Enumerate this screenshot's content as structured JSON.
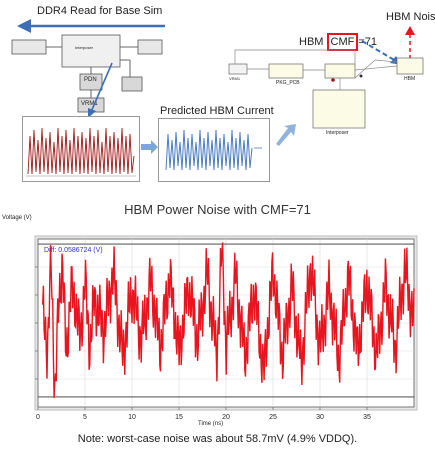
{
  "top": {
    "ddr4_label": "DDR4 Read for Base Sim",
    "hbm_noise_label": "HBM Noise",
    "hbm_cmf_prefix": "HBM ",
    "hbm_cmf_boxed": "CMF",
    "hbm_cmf_suffix": "=71",
    "predicted_label": "Predicted HBM Current",
    "blocks": {
      "interposer_left": "Interposer",
      "pdn": "PDN",
      "vrm1_left": "VRM1",
      "vrm1_right": "VRM1",
      "pkg_pcb": "PKG_PCB",
      "hbm": "HBM",
      "interposer_right": "Interposer"
    }
  },
  "plot": {
    "title": "HBM Power Noise with CMF=71",
    "ylabel": "Voltage (V)",
    "xlabel": "Time (ns)",
    "diff_label": "Diff: 0.0586724 (V)",
    "note": "Note: worst-case noise was about 58.7mV (4.9% VDDQ).",
    "x_ticks": [
      "0",
      "5",
      "10",
      "15",
      "20",
      "25",
      "30",
      "35"
    ]
  },
  "chart_data": {
    "type": "line",
    "title": "HBM Power Noise with CMF=71",
    "xlabel": "Time (ns)",
    "ylabel": "Voltage (V)",
    "xlim": [
      0,
      40
    ],
    "x_ticks": [
      0,
      5,
      10,
      15,
      20,
      25,
      30,
      35
    ],
    "diff_v": 0.0586724,
    "series": [
      {
        "color": "#e8141e",
        "x": [
          0.5,
          1.0,
          1.4,
          1.8,
          2.2,
          2.6,
          3.0,
          3.5,
          4.0,
          4.5,
          5.0,
          5.5,
          6.0,
          7.0,
          8.0,
          9.0,
          10.0,
          11.0,
          12.0,
          13.0,
          14.0,
          15.0,
          16.0,
          17.0,
          18.0,
          19.0,
          19.6,
          20.0,
          21.0,
          22.0,
          23.0,
          24.0,
          25.0,
          26.0,
          27.0,
          28.0,
          29.0,
          30.0,
          31.0,
          32.0,
          33.0,
          34.0,
          35.0,
          36.0,
          37.0,
          38.0,
          39.0,
          40.0
        ],
        "y": [
          0.55,
          0.35,
          0.85,
          0.08,
          0.6,
          0.88,
          0.3,
          0.7,
          0.62,
          0.4,
          0.75,
          0.35,
          0.65,
          0.45,
          0.8,
          0.3,
          0.7,
          0.4,
          0.75,
          0.35,
          0.78,
          0.32,
          0.72,
          0.4,
          0.8,
          0.3,
          0.97,
          0.35,
          0.78,
          0.3,
          0.7,
          0.2,
          0.82,
          0.3,
          0.72,
          0.25,
          0.85,
          0.35,
          0.7,
          0.28,
          0.78,
          0.32,
          0.75,
          0.3,
          0.72,
          0.35,
          0.82,
          0.5
        ]
      }
    ]
  },
  "colors": {
    "accent": "#e8141e",
    "arrow_blue": "#3c6fb4",
    "diff_blue": "#3333cc"
  }
}
